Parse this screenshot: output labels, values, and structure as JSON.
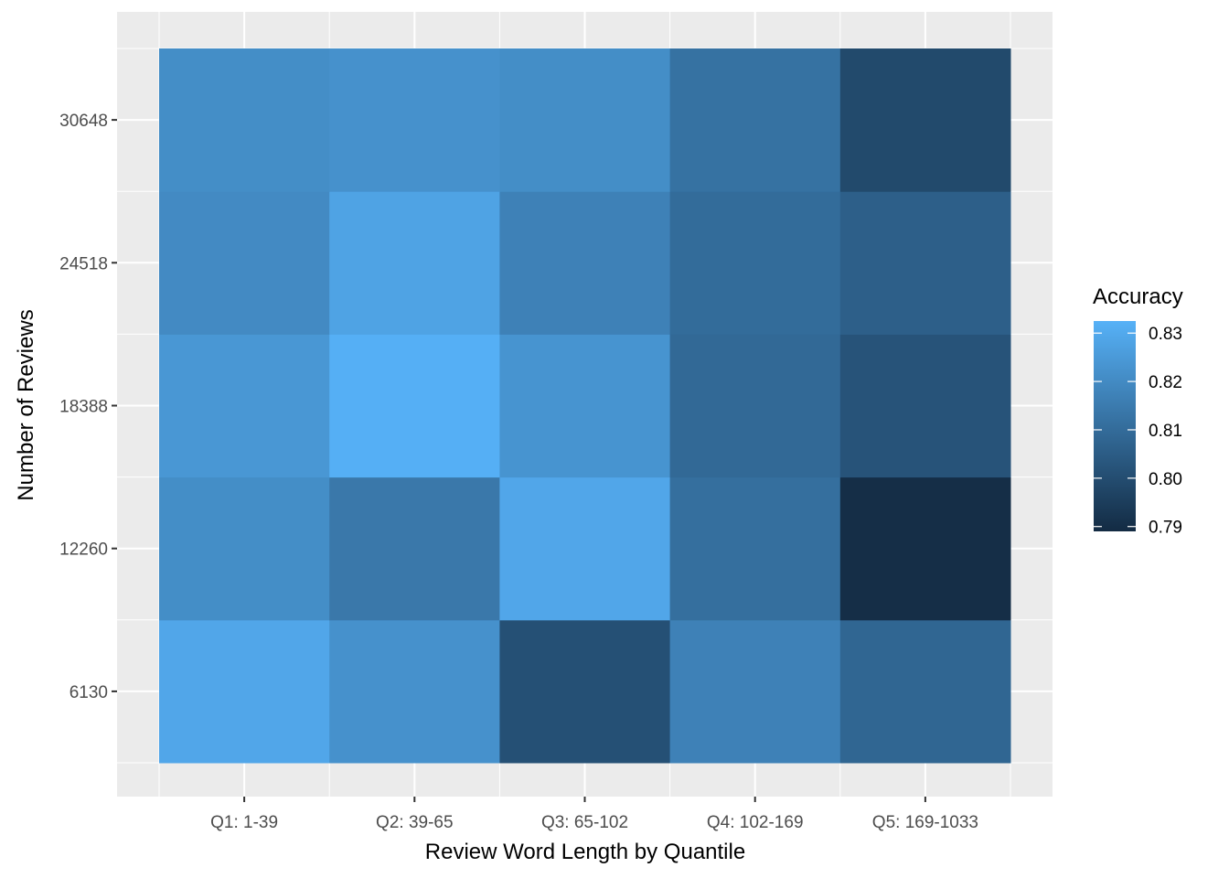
{
  "chart_data": {
    "type": "heatmap",
    "title": "",
    "xlabel": "Review Word Length by Quantile",
    "ylabel": "Number of Reviews",
    "x_categories": [
      "Q1: 1-39",
      "Q2: 39-65",
      "Q3: 65-102",
      "Q4: 102-169",
      "Q5: 169-1033"
    ],
    "y_categories": [
      "6130",
      "12260",
      "18388",
      "24518",
      "30648"
    ],
    "values": [
      [
        0.829,
        0.822,
        0.801,
        0.817,
        0.808
      ],
      [
        0.821,
        0.814,
        0.829,
        0.811,
        0.79
      ],
      [
        0.824,
        0.832,
        0.823,
        0.809,
        0.802
      ],
      [
        0.82,
        0.828,
        0.817,
        0.81,
        0.806
      ],
      [
        0.821,
        0.822,
        0.821,
        0.812,
        0.799
      ]
    ],
    "legend": {
      "title": "Accuracy",
      "min": 0.789,
      "max": 0.8325,
      "breaks": [
        0.79,
        0.8,
        0.81,
        0.82,
        0.83
      ],
      "break_labels": [
        "0.79",
        "0.80",
        "0.81",
        "0.82",
        "0.83"
      ],
      "low_color": "#132B43",
      "high_color": "#56B1F7",
      "position": "right"
    },
    "grid": true,
    "panel_background": "#EBEBEB",
    "grid_color": "#FFFFFF"
  }
}
